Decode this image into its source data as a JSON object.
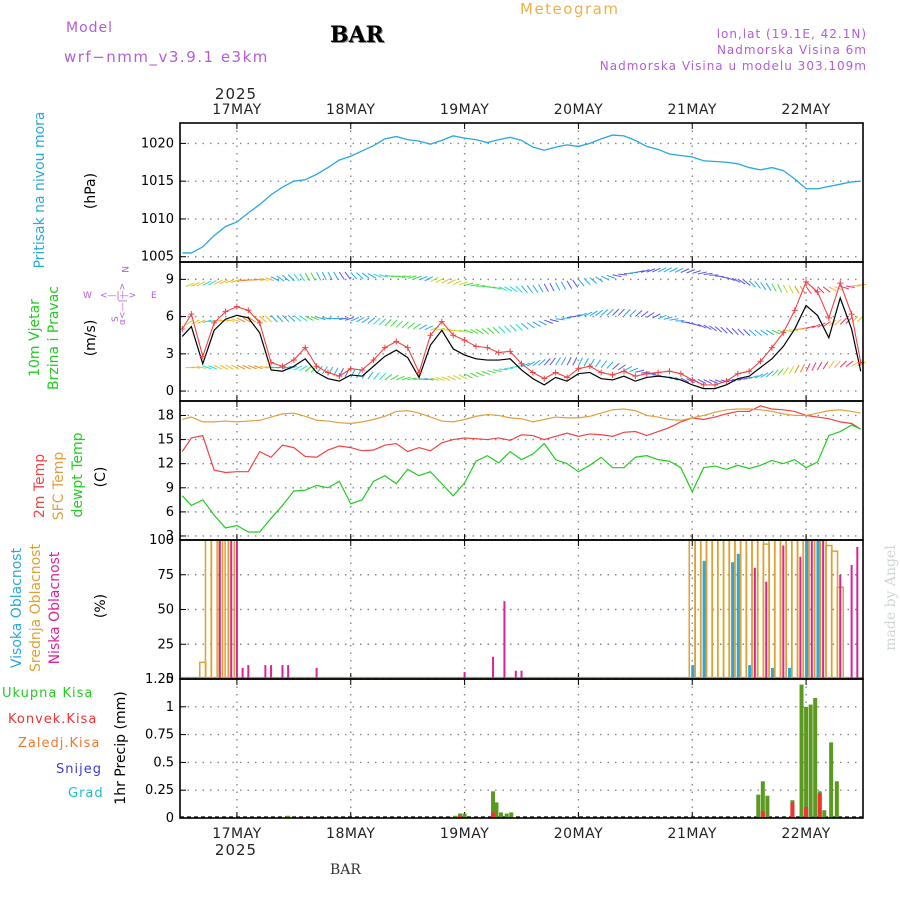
{
  "header": {
    "model_label": "Model",
    "model_name": "wrf−nmm_v3.9.1  e3km",
    "station": "BAR",
    "meteogram": "Meteogram",
    "lonlat": "lon,lat (19.1E, 42.1N)",
    "elevation": "Nadmorska Visina 6m",
    "model_elevation": "Nadmorska Visina u modelu 303.109m"
  },
  "colors": {
    "pressure": "#29a8e0",
    "temp2m": "#ee4444",
    "sfc": "#e0a040",
    "dewpt": "#22cc22",
    "wind_obs": "#000000",
    "wind_model": "#ee4444",
    "high_cloud": "#29a8e0",
    "mid_cloud": "#e0a030",
    "low_cloud": "#dd2299",
    "precip_total": "#5a9a20",
    "precip_conv": "#ee3333",
    "label_purple": "#b25ed8"
  },
  "chart_data": {
    "type": "meteogram",
    "time_axis": {
      "top_year": "2025",
      "bottom_year": "2025",
      "ticks": [
        "17MAY",
        "18MAY",
        "19MAY",
        "20MAY",
        "21MAY",
        "22MAY"
      ],
      "start_day": 16.5,
      "end_day": 22.5
    },
    "panels": [
      {
        "id": "pressure",
        "type": "line",
        "ylabel": "Pritisak na nivou mora",
        "unit": "(hPa)",
        "ylim": [
          1004.3,
          1022.7
        ],
        "yticks": [
          1005,
          1010,
          1015,
          1020
        ],
        "x": [
          16.52,
          16.6,
          16.7,
          16.8,
          16.9,
          17.0,
          17.1,
          17.2,
          17.3,
          17.4,
          17.5,
          17.6,
          17.7,
          17.8,
          17.9,
          18.0,
          18.1,
          18.2,
          18.3,
          18.4,
          18.5,
          18.6,
          18.7,
          18.8,
          18.9,
          19.0,
          19.1,
          19.2,
          19.3,
          19.4,
          19.5,
          19.6,
          19.7,
          19.8,
          19.9,
          20.0,
          20.1,
          20.2,
          20.3,
          20.4,
          20.5,
          20.6,
          20.7,
          20.8,
          20.9,
          21.0,
          21.1,
          21.2,
          21.3,
          21.4,
          21.5,
          21.6,
          21.7,
          21.8,
          21.9,
          22.0,
          22.1,
          22.2,
          22.3,
          22.4,
          22.48
        ],
        "series": [
          {
            "name": "Pritisak",
            "values": [
              1005.5,
              1005.5,
              1006.3,
              1007.8,
              1009.0,
              1009.6,
              1010.8,
              1011.9,
              1013.2,
              1014.2,
              1015.0,
              1015.2,
              1015.9,
              1016.8,
              1017.8,
              1018.3,
              1019.0,
              1019.7,
              1020.6,
              1020.9,
              1020.5,
              1020.3,
              1019.9,
              1020.4,
              1021.0,
              1020.7,
              1020.5,
              1020.1,
              1020.5,
              1020.8,
              1020.4,
              1019.5,
              1019.1,
              1019.5,
              1019.8,
              1019.6,
              1020.0,
              1020.6,
              1021.1,
              1021.0,
              1020.4,
              1019.6,
              1019.2,
              1018.6,
              1018.4,
              1018.2,
              1017.7,
              1017.6,
              1017.5,
              1017.3,
              1016.8,
              1016.5,
              1016.8,
              1016.4,
              1015.3,
              1014.0,
              1014.0,
              1014.3,
              1014.6,
              1014.9,
              1015.0
            ]
          }
        ]
      },
      {
        "id": "wind",
        "type": "line",
        "ylabel": "10m Vjetar",
        "ylabel2": "Brzina i Pravac",
        "unit": "(m/s)",
        "compass": [
          "W",
          "<—|—>",
          "E",
          "N",
          "S"
        ],
        "compass_side": "α<—|—>",
        "ylim": [
          -0.8,
          10.4
        ],
        "yticks": [
          0,
          3,
          6,
          9
        ],
        "x": [
          16.52,
          16.6,
          16.7,
          16.8,
          16.9,
          17.0,
          17.1,
          17.2,
          17.3,
          17.4,
          17.5,
          17.6,
          17.7,
          17.8,
          17.9,
          18.0,
          18.1,
          18.2,
          18.3,
          18.4,
          18.5,
          18.6,
          18.7,
          18.8,
          18.9,
          19.0,
          19.1,
          19.2,
          19.3,
          19.4,
          19.5,
          19.6,
          19.7,
          19.8,
          19.9,
          20.0,
          20.1,
          20.2,
          20.3,
          20.4,
          20.5,
          20.6,
          20.7,
          20.8,
          20.9,
          21.0,
          21.1,
          21.2,
          21.3,
          21.4,
          21.5,
          21.6,
          21.7,
          21.8,
          21.9,
          22.0,
          22.1,
          22.2,
          22.3,
          22.4,
          22.48
        ],
        "series": [
          {
            "name": "Brzina (model)",
            "values": [
              5.0,
              6.2,
              2.8,
              5.5,
              6.4,
              6.8,
              6.5,
              5.5,
              2.3,
              2.0,
              2.5,
              3.5,
              2.0,
              1.5,
              1.2,
              1.8,
              1.7,
              2.5,
              3.5,
              4.0,
              3.5,
              1.5,
              4.5,
              5.6,
              4.5,
              4.1,
              3.6,
              3.5,
              3.1,
              3.2,
              2.2,
              1.5,
              1.0,
              1.5,
              1.1,
              1.8,
              2.0,
              1.5,
              1.3,
              1.6,
              1.2,
              1.4,
              1.5,
              1.6,
              1.4,
              0.9,
              0.5,
              0.5,
              0.8,
              1.4,
              1.6,
              2.4,
              3.5,
              4.7,
              6.5,
              8.8,
              8.0,
              5.9,
              8.7,
              6.2,
              2.3
            ]
          },
          {
            "name": "Brzina (udari)",
            "values": [
              4.4,
              5.2,
              2.2,
              4.9,
              5.8,
              6.1,
              5.9,
              4.7,
              1.7,
              1.6,
              2.0,
              2.6,
              1.5,
              1.0,
              0.8,
              1.3,
              1.2,
              2.0,
              2.8,
              3.3,
              2.7,
              1.1,
              3.7,
              4.9,
              3.4,
              2.9,
              2.6,
              2.5,
              2.5,
              2.6,
              1.7,
              1.0,
              0.5,
              1.1,
              0.8,
              1.4,
              1.5,
              1.0,
              0.9,
              1.2,
              0.8,
              1.1,
              1.2,
              1.1,
              0.9,
              0.5,
              0.2,
              0.2,
              0.5,
              1.0,
              1.2,
              1.9,
              2.6,
              3.6,
              5.0,
              6.9,
              6.1,
              4.3,
              7.5,
              5.0,
              1.6
            ]
          }
        ]
      },
      {
        "id": "temperature",
        "type": "line",
        "ylabel": "2m Temp",
        "ylabel2": "SFC Temp",
        "ylabel3": "dewpt Temp",
        "unit": "(C)",
        "ylim": [
          2.5,
          19.8
        ],
        "yticks": [
          3,
          6,
          9,
          12,
          15,
          18
        ],
        "x": [
          16.52,
          16.6,
          16.7,
          16.8,
          16.9,
          17.0,
          17.1,
          17.2,
          17.3,
          17.4,
          17.5,
          17.6,
          17.7,
          17.8,
          17.9,
          18.0,
          18.1,
          18.2,
          18.3,
          18.4,
          18.5,
          18.6,
          18.7,
          18.8,
          18.9,
          19.0,
          19.1,
          19.2,
          19.3,
          19.4,
          19.5,
          19.6,
          19.7,
          19.8,
          19.9,
          20.0,
          20.1,
          20.2,
          20.3,
          20.4,
          20.5,
          20.6,
          20.7,
          20.8,
          20.9,
          21.0,
          21.1,
          21.2,
          21.3,
          21.4,
          21.5,
          21.6,
          21.7,
          21.8,
          21.9,
          22.0,
          22.1,
          22.2,
          22.3,
          22.4,
          22.48
        ],
        "series": [
          {
            "name": "2m Temp",
            "values": [
              13.5,
              15.2,
              15.5,
              11.2,
              10.9,
              11.0,
              11.0,
              13.5,
              12.8,
              14.3,
              14.0,
              12.9,
              12.8,
              13.7,
              14.2,
              14.0,
              13.6,
              13.7,
              14.3,
              14.5,
              13.5,
              14.0,
              13.6,
              14.6,
              15.0,
              15.2,
              15.1,
              15.0,
              15.2,
              14.9,
              15.6,
              15.5,
              15.0,
              15.4,
              15.8,
              15.4,
              15.7,
              15.6,
              15.4,
              15.9,
              16.0,
              15.5,
              16.0,
              16.5,
              17.2,
              17.7,
              17.5,
              17.8,
              18.2,
              18.5,
              18.5,
              19.2,
              18.8,
              18.7,
              18.5,
              18.0,
              17.8,
              17.6,
              17.2,
              17.0,
              16.3
            ]
          },
          {
            "name": "SFC Temp",
            "values": [
              17.5,
              17.8,
              17.2,
              17.2,
              17.3,
              17.2,
              17.3,
              17.4,
              17.8,
              18.2,
              18.3,
              17.9,
              17.4,
              17.3,
              17.1,
              17.0,
              17.2,
              17.5,
              17.9,
              18.5,
              18.6,
              18.3,
              17.8,
              17.3,
              17.2,
              17.5,
              17.9,
              18.1,
              18.0,
              17.7,
              17.6,
              17.2,
              17.5,
              17.8,
              17.7,
              17.7,
              17.9,
              18.3,
              18.7,
              18.8,
              18.6,
              18.0,
              17.8,
              17.5,
              17.4,
              17.7,
              18.0,
              18.4,
              18.7,
              18.8,
              18.8,
              18.7,
              18.5,
              18.2,
              18.0,
              18.0,
              18.3,
              18.6,
              18.7,
              18.5,
              18.3
            ]
          },
          {
            "name": "dewpt Temp",
            "values": [
              8.0,
              6.8,
              7.5,
              5.6,
              4.0,
              4.3,
              3.5,
              3.5,
              5.2,
              6.8,
              8.6,
              8.7,
              9.3,
              9.0,
              9.8,
              7.0,
              7.5,
              9.8,
              10.5,
              9.5,
              11.3,
              10.5,
              11.0,
              9.5,
              8.0,
              9.6,
              12.3,
              13.0,
              12.1,
              13.5,
              12.5,
              13.2,
              14.5,
              12.5,
              12.0,
              11.0,
              11.8,
              12.8,
              11.5,
              11.5,
              12.8,
              13.0,
              12.5,
              12.3,
              11.5,
              8.5,
              11.5,
              11.7,
              11.3,
              11.8,
              11.4,
              11.8,
              12.4,
              12.0,
              12.5,
              11.5,
              12.2,
              15.5,
              16.0,
              16.8,
              16.3
            ]
          }
        ]
      },
      {
        "id": "cloud",
        "type": "bar",
        "ylabel": "Visoka Oblacnost",
        "ylabel2": "Srednja Oblacnost",
        "ylabel3": "Niska Oblacnost",
        "unit": "(%)",
        "ylim": [
          0,
          100
        ],
        "yticks": [
          0,
          25,
          50,
          75,
          100
        ],
        "series": [
          {
            "name": "Srednja Oblacnost",
            "x": [
              16.7,
              16.75,
              16.8,
              16.87,
              16.9,
              16.95,
              21.0,
              21.05,
              21.1,
              21.15,
              21.2,
              21.25,
              21.3,
              21.35,
              21.4,
              21.45,
              21.5,
              21.55,
              21.6,
              21.65,
              21.7,
              21.75,
              21.8,
              21.85,
              21.9,
              21.95,
              22.0,
              22.05,
              22.1,
              22.15,
              22.2,
              22.25,
              22.3
            ],
            "values": [
              12,
              100,
              100,
              100,
              100,
              100,
              100,
              100,
              100,
              100,
              100,
              100,
              100,
              100,
              100,
              100,
              100,
              100,
              100,
              97,
              100,
              100,
              100,
              100,
              100,
              100,
              100,
              100,
              100,
              100,
              96,
              92,
              66
            ]
          },
          {
            "name": "Niska Oblacnost",
            "x": [
              16.85,
              16.95,
              17.0,
              17.05,
              17.1,
              17.25,
              17.3,
              17.4,
              17.45,
              17.7,
              19.0,
              19.25,
              19.35,
              19.45,
              19.5,
              21.55,
              21.65,
              21.8,
              21.95,
              22.05,
              22.15,
              22.3,
              22.4,
              22.45
            ],
            "values": [
              100,
              100,
              100,
              8,
              10,
              10,
              10,
              10,
              10,
              8,
              5,
              16,
              56,
              6,
              6,
              80,
              70,
              96,
              88,
              100,
              100,
              75,
              82,
              95
            ]
          },
          {
            "name": "Visoka Oblacnost",
            "x": [
              21.0,
              21.1,
              21.35,
              21.4,
              21.5,
              21.7,
              21.85,
              22.0,
              22.1
            ],
            "values": [
              10,
              85,
              84,
              90,
              10,
              8,
              8,
              100,
              100
            ]
          }
        ]
      },
      {
        "id": "precip",
        "type": "bar",
        "ylabel": "1hr Precip (mm)",
        "ylim": [
          0,
          1.25
        ],
        "yticks": [
          0,
          0.25,
          0.5,
          0.75,
          1,
          1.25
        ],
        "ytick_labels": [
          "0",
          "0.25",
          "0.5",
          "0.75",
          "1",
          "1.25"
        ],
        "legend": [
          "Ukupna Kisa",
          "Konvek.Kisa",
          "Zaledj.Kisa",
          "Snijeg",
          "Grad"
        ],
        "legend_colors": [
          "#22cc22",
          "#ee3333",
          "#f07828",
          "#3b3bd8",
          "#22bbcc"
        ],
        "series": [
          {
            "name": "Ukupna Kisa",
            "x": [
              17.45,
              18.92,
              18.96,
              19.0,
              19.25,
              19.28,
              19.32,
              19.37,
              19.41,
              21.58,
              21.62,
              21.66,
              21.88,
              21.96,
              22.0,
              22.04,
              22.08,
              22.12,
              22.16,
              22.22,
              22.27
            ],
            "values": [
              0.02,
              0.02,
              0.04,
              0.04,
              0.24,
              0.14,
              0.05,
              0.04,
              0.05,
              0.21,
              0.33,
              0.2,
              0.16,
              1.2,
              1.0,
              1.02,
              1.08,
              0.24,
              0.07,
              0.68,
              0.33
            ]
          },
          {
            "name": "Konvek.Kisa",
            "x": [
              18.96,
              19.25,
              21.62,
              21.88,
              22.0,
              22.12
            ],
            "values": [
              0.02,
              0.05,
              0.06,
              0.14,
              0.1,
              0.22
            ]
          }
        ]
      }
    ]
  },
  "panel_labels": {
    "legend": [
      "Ukupna Kisa",
      "Konvek.Kisa",
      "Zaledj.Kisa",
      "Snijeg",
      "Grad"
    ]
  },
  "footer": {
    "station": "BAR",
    "made_by": "made by Angel"
  }
}
